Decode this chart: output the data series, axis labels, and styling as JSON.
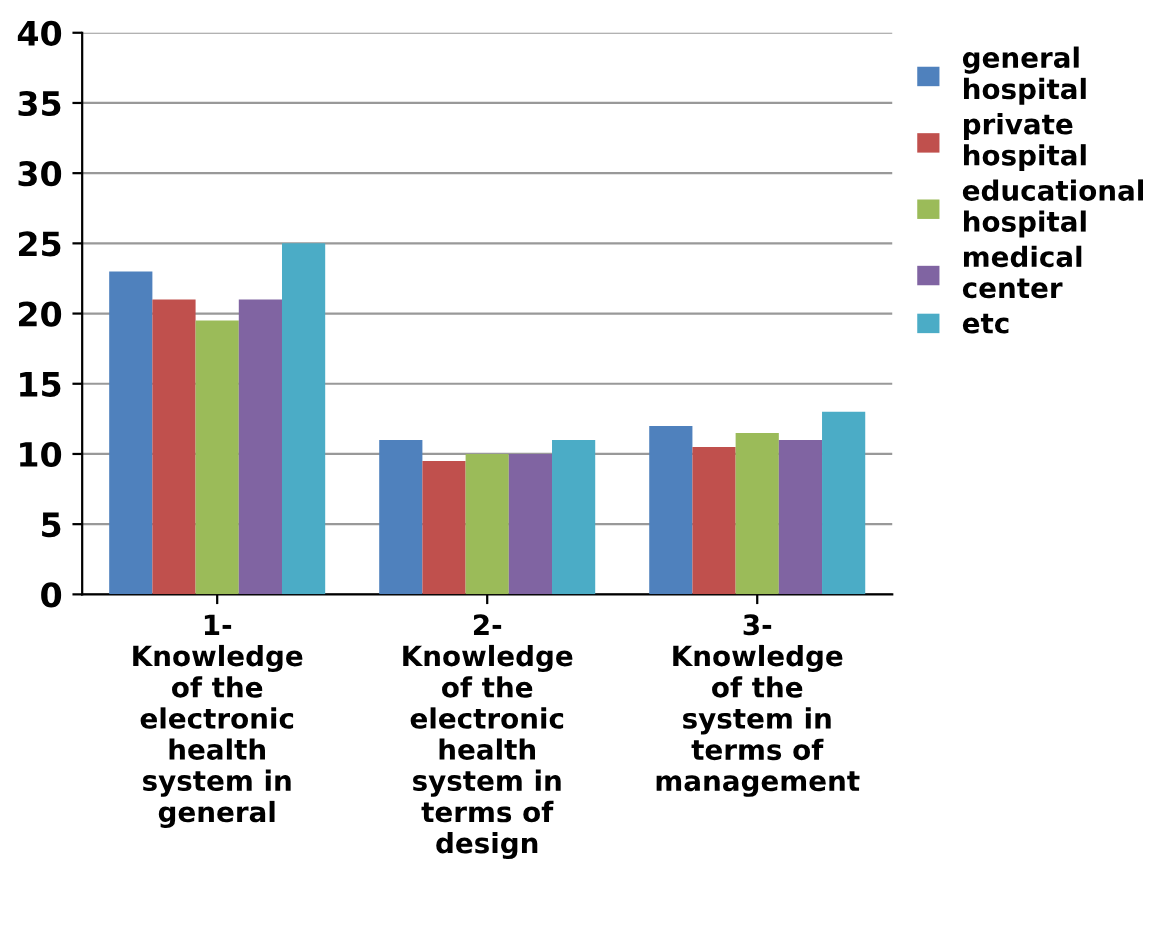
{
  "chart_data": {
    "type": "bar",
    "categories": [
      "1-\nKnowledge\nof the\nelectronic\nhealth\nsystem in\ngeneral",
      "2-\nKnowledge\nof the\nelectronic\nhealth\nsystem in\nterms of\ndesign",
      "3-\nKnowledge\nof the\nsystem in\nterms of\nmanagement"
    ],
    "series": [
      {
        "name": "general\nhospital",
        "color": "#4f81bd",
        "values": [
          23,
          11,
          12
        ]
      },
      {
        "name": "private\nhospital",
        "color": "#c0504d",
        "values": [
          21,
          9.5,
          10.5
        ]
      },
      {
        "name": "educational\nhospital",
        "color": "#9bbb59",
        "values": [
          19.5,
          10,
          11.5
        ]
      },
      {
        "name": "medical\ncenter",
        "color": "#8064a2",
        "values": [
          21,
          10,
          11
        ]
      },
      {
        "name": "etc",
        "color": "#4bacc6",
        "values": [
          25,
          11,
          13
        ]
      }
    ],
    "ylim": [
      0,
      40
    ],
    "yticks": [
      0,
      5,
      10,
      15,
      20,
      25,
      30,
      35,
      40
    ],
    "grid": "y",
    "legend": "top right"
  }
}
